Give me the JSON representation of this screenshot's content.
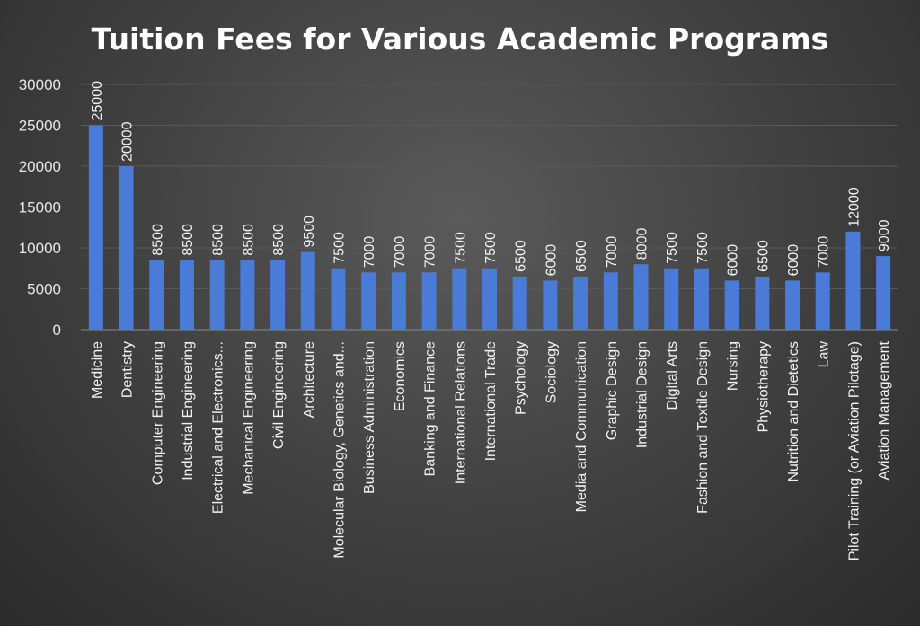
{
  "chart_data": {
    "type": "bar",
    "title": "Tuition Fees for Various Academic Programs",
    "xlabel": "",
    "ylabel": "",
    "ylim": [
      0,
      30000
    ],
    "yticks": [
      0,
      5000,
      10000,
      15000,
      20000,
      25000,
      30000
    ],
    "grid": true,
    "bar_color": "#4a7bd6",
    "categories": [
      "Medicine",
      "Dentistry",
      "Computer Engineering",
      "Industrial Engineering",
      "Electrical and Electronics...",
      "Mechanical Engineering",
      "Civil Engineering",
      "Architecture",
      "Molecular Biology, Genetics and...",
      "Business Administration",
      "Economics",
      "Banking and Finance",
      "International Relations",
      "International Trade",
      "Psychology",
      "Sociology",
      "Media and Communication",
      "Graphic Design",
      "Industrial Design",
      "Digital Arts",
      "Fashion and Textile Design",
      "Nursing",
      "Physiotherapy",
      "Nutrition and Dietetics",
      "Law",
      "Pilot Training (or Aviation Pilotage)",
      "Aviation Management"
    ],
    "values": [
      25000,
      20000,
      8500,
      8500,
      8500,
      8500,
      8500,
      9500,
      7500,
      7000,
      7000,
      7000,
      7500,
      7500,
      6500,
      6000,
      6500,
      7000,
      8000,
      7500,
      7500,
      6000,
      6500,
      6000,
      7000,
      12000,
      9000
    ]
  }
}
